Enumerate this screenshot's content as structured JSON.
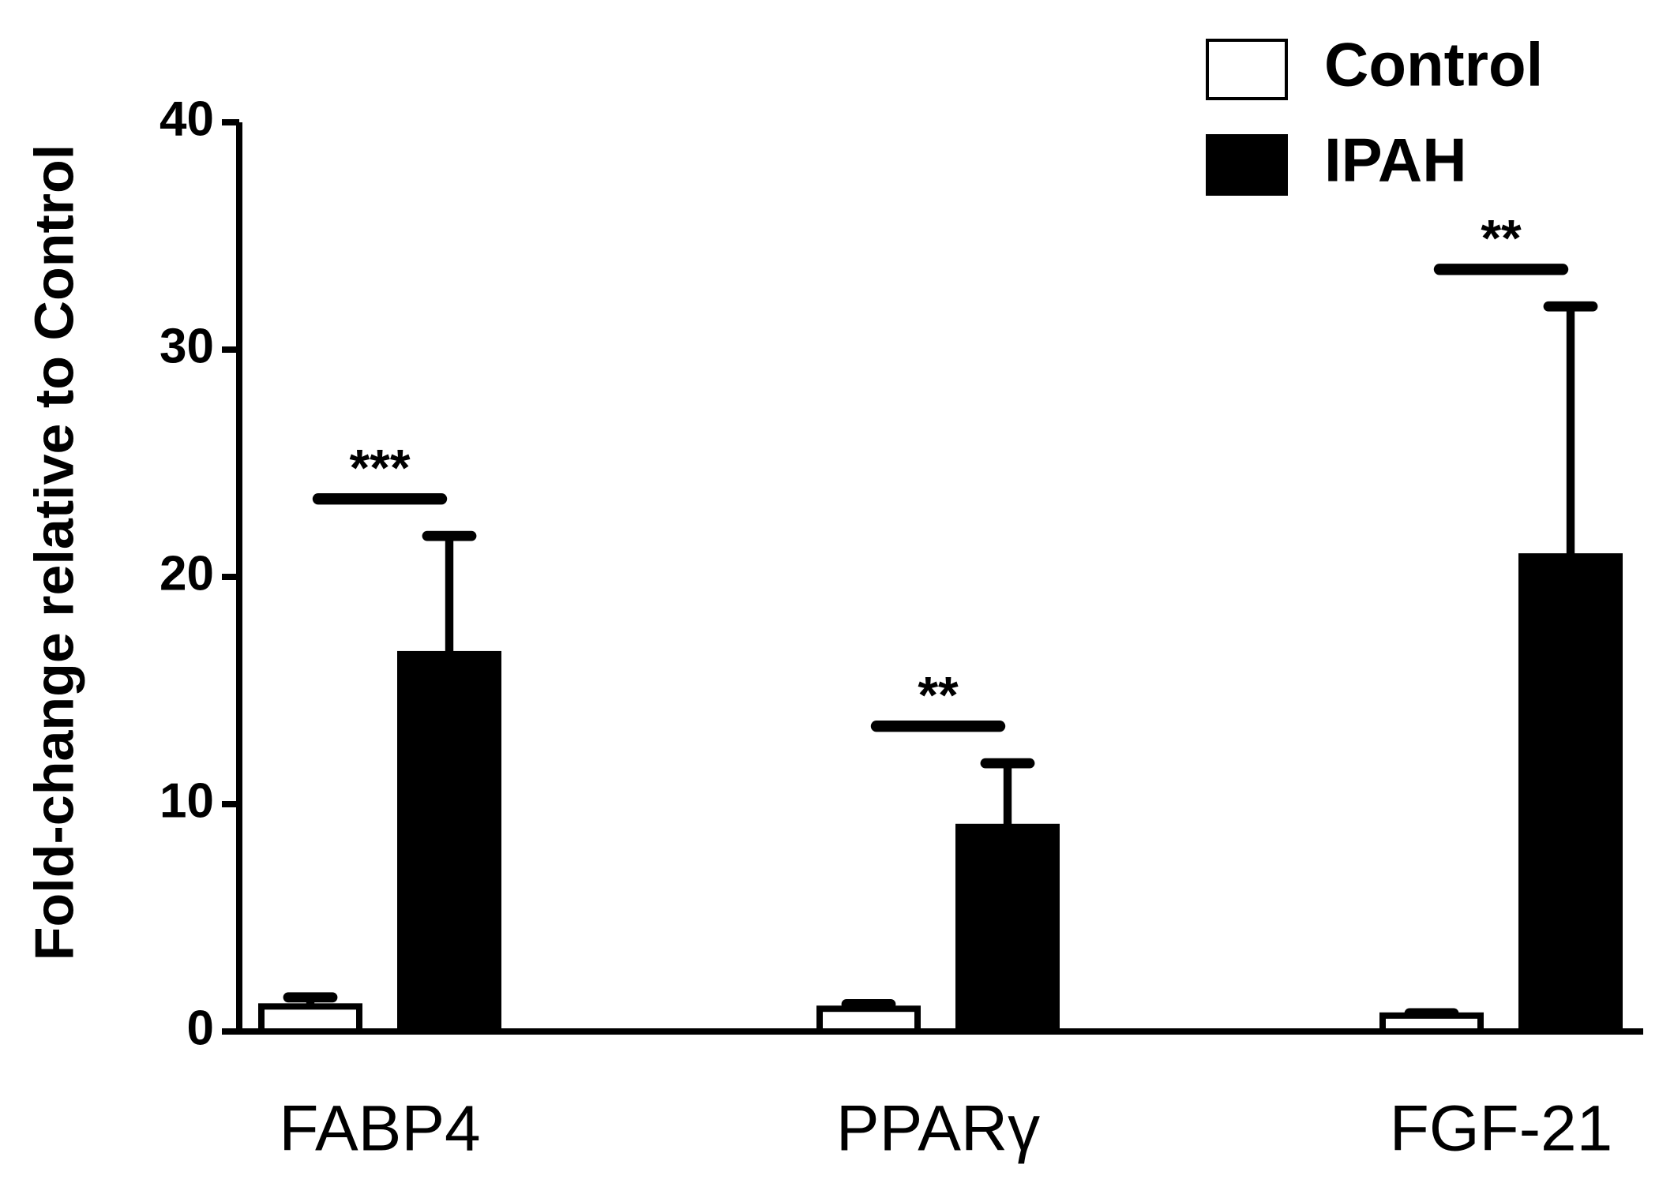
{
  "chart_data": {
    "type": "bar",
    "y_label": "Fold-change relative to Control",
    "categories": [
      "FABP4",
      "PPARγ",
      "FGF-21"
    ],
    "series": [
      {
        "name": "Control",
        "color": "#ffffff",
        "values": [
          1.1,
          1.0,
          0.7
        ],
        "errors": [
          0.4,
          0.2,
          0.1
        ]
      },
      {
        "name": "IPAH",
        "color": "#000000",
        "values": [
          16.6,
          9.0,
          20.9
        ],
        "errors": [
          5.2,
          2.8,
          11.0
        ]
      }
    ],
    "annotations": [
      "***",
      "**",
      "**"
    ],
    "ylim": [
      0,
      40
    ],
    "yticks": [
      0,
      10,
      20,
      30,
      40
    ],
    "grid": false,
    "legend": "upper right"
  }
}
